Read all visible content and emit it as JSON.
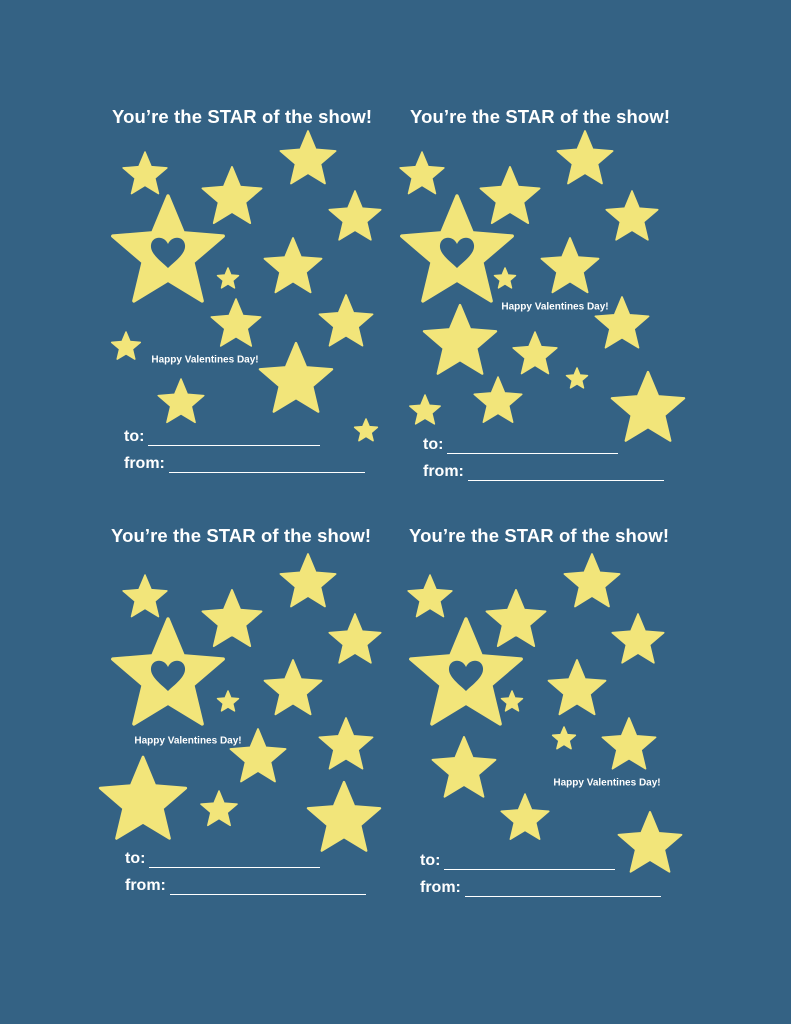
{
  "colors": {
    "background": "#346284",
    "star": "#F2E57A",
    "text": "#FFFFFF"
  },
  "cards": [
    {
      "title": "You’re the STAR of the show!",
      "greeting": "Happy Valentines Day!",
      "to_label": "to:",
      "from_label": "from:"
    },
    {
      "title": "You’re the STAR of the show!",
      "greeting": "Happy Valentines Day!",
      "to_label": "to:",
      "from_label": "from:"
    },
    {
      "title": "You’re the STAR of the show!",
      "greeting": "Happy Valentines Day!",
      "to_label": "to:",
      "from_label": "from:"
    },
    {
      "title": "You’re the STAR of the show!",
      "greeting": "Happy Valentines Day!",
      "to_label": "to:",
      "from_label": "from:"
    }
  ]
}
